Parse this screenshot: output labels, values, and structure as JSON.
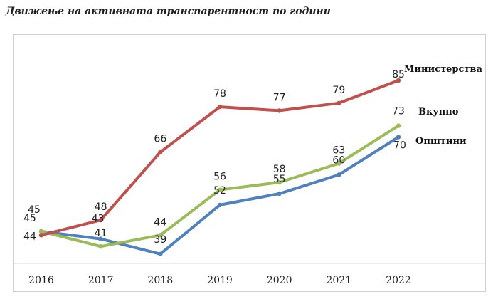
{
  "title": "Движење на активната транспарентност по години",
  "chart_data": {
    "type": "line",
    "title": "Движење на активната транспарентност по години",
    "xlabel": "",
    "ylabel": "",
    "categories": [
      "2016",
      "2017",
      "2018",
      "2019",
      "2020",
      "2021",
      "2022"
    ],
    "ylim": [
      30,
      95
    ],
    "grid": false,
    "legend": "inline labels at line ends",
    "series": [
      {
        "name": "Министерства",
        "color": "#c0504d",
        "values": [
          44,
          48,
          66,
          78,
          77,
          79,
          85
        ]
      },
      {
        "name": "Вкупно",
        "color": "#9bbb59",
        "values": [
          45,
          41,
          44,
          56,
          58,
          63,
          73
        ]
      },
      {
        "name": "Општини",
        "color": "#4f81bd",
        "values": [
          45,
          43,
          39,
          52,
          55,
          60,
          70
        ]
      }
    ]
  }
}
